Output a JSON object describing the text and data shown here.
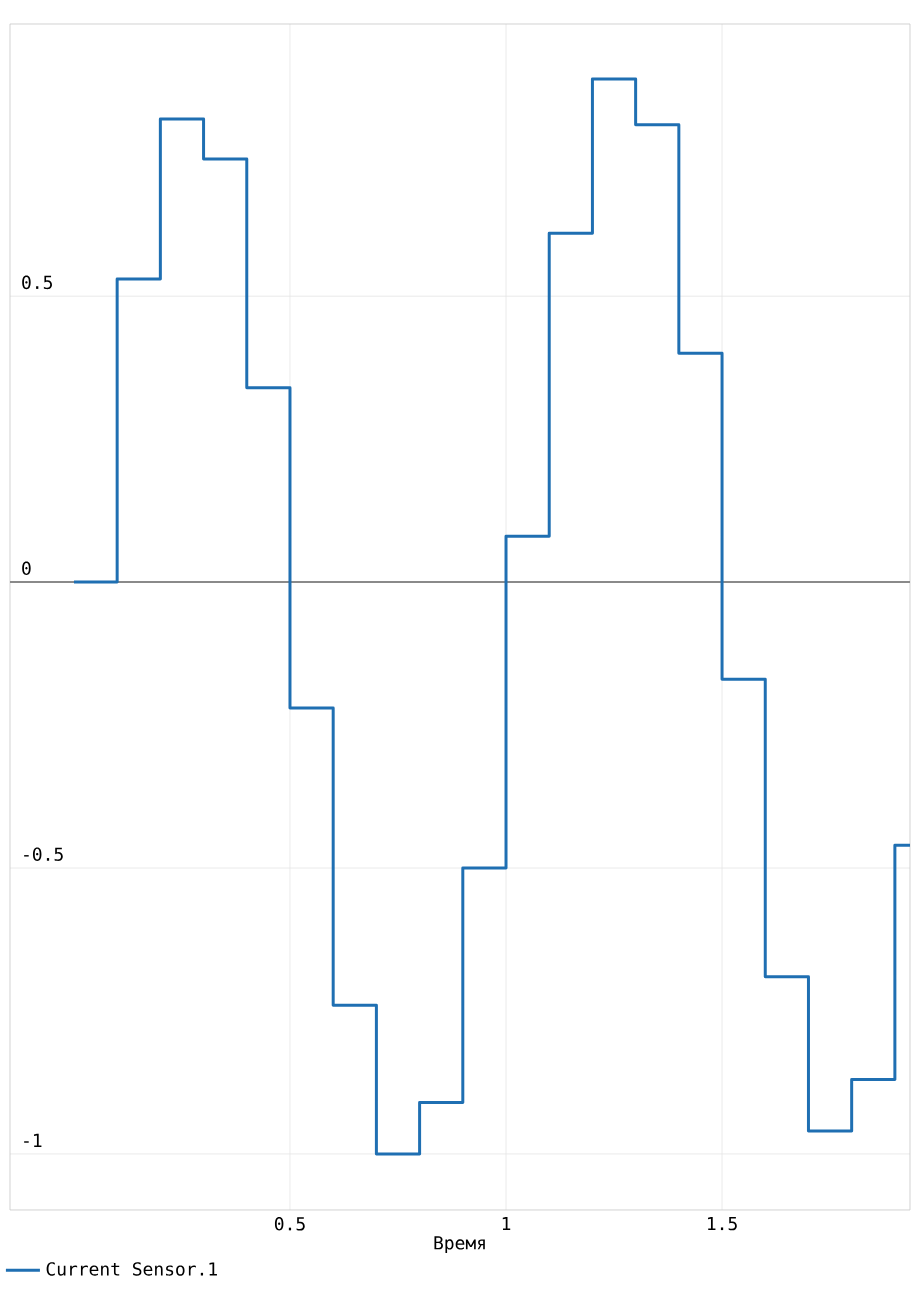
{
  "chart_data": {
    "type": "step",
    "xlabel": "Время",
    "x": [
      0,
      0.1,
      0.2,
      0.3,
      0.4,
      0.5,
      0.6,
      0.7,
      0.8,
      0.9,
      1.0,
      1.1,
      1.2,
      1.3,
      1.4,
      1.5,
      1.6,
      1.7,
      1.8,
      1.9,
      1.935
    ],
    "series": [
      {
        "name": "Current Sensor.1",
        "color": "#1f6fb2",
        "values": [
          0,
          0.53,
          0.81,
          0.74,
          0.34,
          -0.22,
          -0.74,
          -1.0,
          -0.91,
          -0.5,
          0.08,
          0.61,
          0.88,
          0.8,
          0.4,
          -0.17,
          -0.69,
          -0.96,
          -0.87,
          -0.46,
          -0.46
        ]
      }
    ],
    "xlim": [
      -0.148,
      1.935
    ],
    "ylim": [
      -1.098,
      0.976
    ],
    "xticks": [
      0.5,
      1,
      1.5
    ],
    "yticks": [
      -1,
      -0.5,
      0,
      0.5
    ],
    "ref_lines": [
      {
        "axis": "y",
        "value": 0,
        "color": "#8a8a8a"
      }
    ],
    "grid": true,
    "legend": "bottom"
  }
}
